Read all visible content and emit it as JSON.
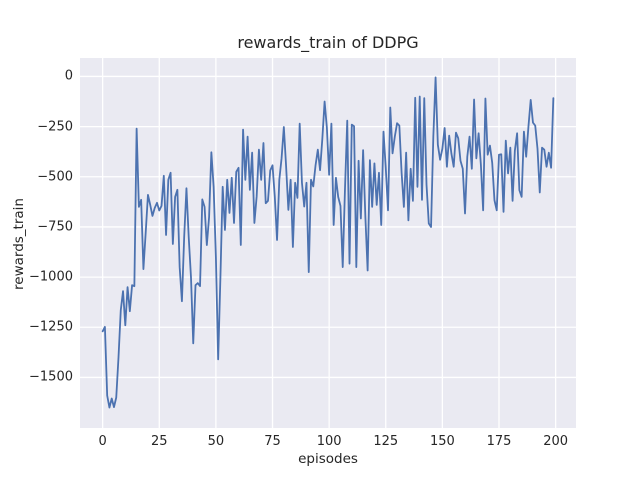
{
  "figure": {
    "title": "rewards_train of DDPG",
    "xlabel": "episodes",
    "ylabel": "rewards_train"
  },
  "chart_data": {
    "type": "line",
    "title": "rewards_train of DDPG",
    "xlabel": "episodes",
    "ylabel": "rewards_train",
    "grid": true,
    "legend": "none",
    "plot_bg_color": "#eaeaf2",
    "grid_color": "#ffffff",
    "line_color": "#4c72b0",
    "text_color": "#262626",
    "xlim": [
      -10,
      209
    ],
    "ylim": [
      -1752,
      92
    ],
    "xticks": [
      0,
      25,
      50,
      75,
      100,
      125,
      150,
      175,
      200
    ],
    "yticks": [
      0,
      -250,
      -500,
      -750,
      -1000,
      -1250,
      -1500
    ],
    "x_start": 0,
    "x_step": 1,
    "series": [
      {
        "name": "rewards_train",
        "color": "#4c72b0",
        "values": [
          -1270,
          -1248,
          -1590,
          -1650,
          -1605,
          -1648,
          -1600,
          -1400,
          -1165,
          -1070,
          -1240,
          -1050,
          -1170,
          -1040,
          -1045,
          -260,
          -650,
          -615,
          -960,
          -780,
          -590,
          -640,
          -695,
          -655,
          -630,
          -668,
          -645,
          -495,
          -790,
          -515,
          -480,
          -835,
          -600,
          -565,
          -950,
          -1120,
          -800,
          -557,
          -800,
          -1000,
          -1330,
          -1040,
          -1030,
          -1045,
          -613,
          -650,
          -840,
          -700,
          -378,
          -550,
          -900,
          -1410,
          -1000,
          -550,
          -765,
          -515,
          -680,
          -505,
          -730,
          -475,
          -455,
          -840,
          -265,
          -515,
          -300,
          -565,
          -380,
          -730,
          -598,
          -365,
          -515,
          -332,
          -632,
          -620,
          -468,
          -443,
          -598,
          -815,
          -515,
          -408,
          -252,
          -448,
          -665,
          -515,
          -850,
          -530,
          -605,
          -235,
          -530,
          -648,
          -530,
          -975,
          -515,
          -548,
          -443,
          -365,
          -467,
          -310,
          -125,
          -255,
          -490,
          -235,
          -740,
          -505,
          -600,
          -645,
          -950,
          -560,
          -220,
          -933,
          -240,
          -248,
          -950,
          -420,
          -708,
          -367,
          -700,
          -967,
          -417,
          -650,
          -433,
          -640,
          -480,
          -740,
          -275,
          -455,
          -667,
          -155,
          -383,
          -300,
          -233,
          -245,
          -480,
          -650,
          -380,
          -717,
          -460,
          -620,
          -106,
          -550,
          -100,
          -615,
          -108,
          -540,
          -733,
          -750,
          -300,
          -5,
          -340,
          -415,
          -360,
          -257,
          -450,
          -295,
          -385,
          -450,
          -280,
          -308,
          -420,
          -460,
          -683,
          -400,
          -300,
          -460,
          -115,
          -408,
          -283,
          -440,
          -667,
          -110,
          -390,
          -345,
          -430,
          -617,
          -667,
          -390,
          -388,
          -675,
          -320,
          -483,
          -355,
          -620,
          -370,
          -283,
          -567,
          -600,
          -275,
          -400,
          -250,
          -117,
          -230,
          -245,
          -360,
          -578,
          -355,
          -365,
          -450,
          -380,
          -455,
          -108
        ]
      }
    ]
  }
}
